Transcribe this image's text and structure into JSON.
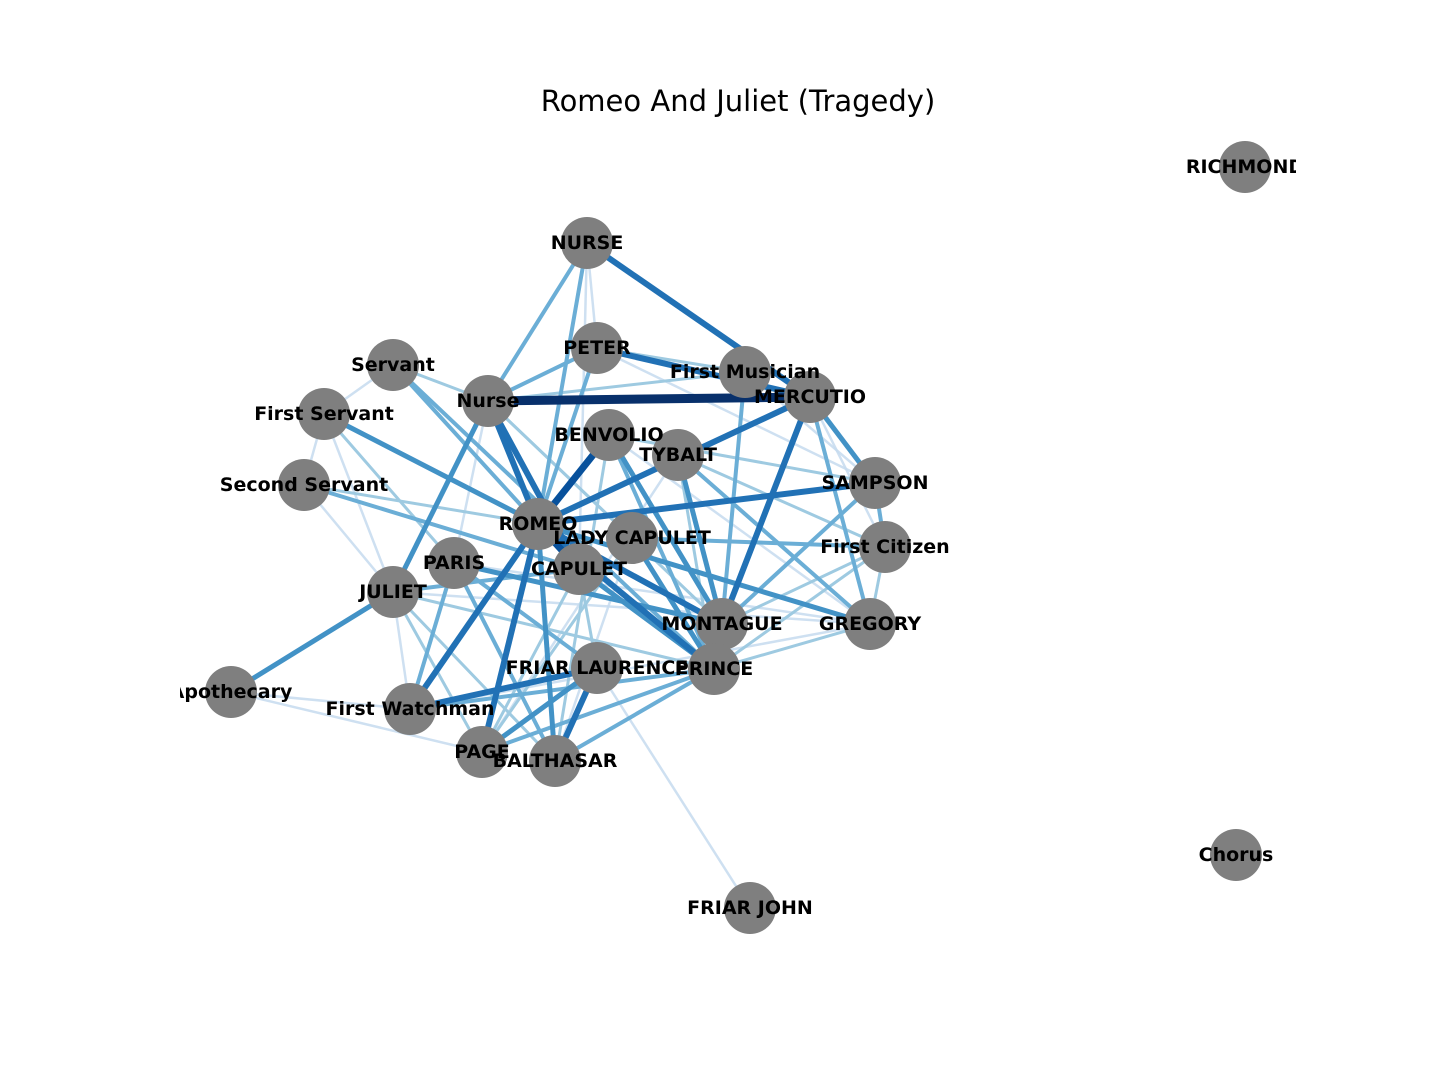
{
  "title": "Romeo And Juliet (Tragedy)",
  "colors": {
    "node": "#7f7f7f",
    "label": "#000000",
    "edge_scale": [
      "#c6dbef",
      "#9ecae1",
      "#6baed6",
      "#4292c6",
      "#2171b5",
      "#08519c",
      "#08306b"
    ]
  },
  "nodes": [
    {
      "id": "RICHMOND",
      "label": "RICHMOND"
    },
    {
      "id": "NURSE",
      "label": "NURSE"
    },
    {
      "id": "PETER",
      "label": "PETER"
    },
    {
      "id": "Servant",
      "label": "Servant"
    },
    {
      "id": "First Musician",
      "label": "First Musician"
    },
    {
      "id": "Nurse",
      "label": "Nurse"
    },
    {
      "id": "MERCUTIO",
      "label": "MERCUTIO"
    },
    {
      "id": "First Servant",
      "label": "First Servant"
    },
    {
      "id": "BENVOLIO",
      "label": "BENVOLIO"
    },
    {
      "id": "TYBALT",
      "label": "TYBALT"
    },
    {
      "id": "Second Servant",
      "label": "Second Servant"
    },
    {
      "id": "SAMPSON",
      "label": "SAMPSON"
    },
    {
      "id": "ROMEO",
      "label": "ROMEO"
    },
    {
      "id": "LADY CAPULET",
      "label": "LADY CAPULET"
    },
    {
      "id": "First Citizen",
      "label": "First Citizen"
    },
    {
      "id": "PARIS",
      "label": "PARIS"
    },
    {
      "id": "CAPULET",
      "label": "CAPULET"
    },
    {
      "id": "JULIET",
      "label": "JULIET"
    },
    {
      "id": "MONTAGUE",
      "label": "MONTAGUE"
    },
    {
      "id": "GREGORY",
      "label": "GREGORY"
    },
    {
      "id": "FRIAR LAURENCE",
      "label": "FRIAR LAURENCE"
    },
    {
      "id": "PRINCE",
      "label": "PRINCE"
    },
    {
      "id": "Apothecary",
      "label": "Apothecary"
    },
    {
      "id": "First Watchman",
      "label": "First Watchman"
    },
    {
      "id": "PAGE",
      "label": "PAGE"
    },
    {
      "id": "BALTHASAR",
      "label": "BALTHASAR"
    },
    {
      "id": "FRIAR JOHN",
      "label": "FRIAR JOHN"
    },
    {
      "id": "Chorus",
      "label": "Chorus"
    }
  ],
  "edges": [
    {
      "source": "Nurse",
      "target": "MERCUTIO",
      "weight": 7
    },
    {
      "source": "ROMEO",
      "target": "BENVOLIO",
      "weight": 6
    },
    {
      "source": "ROMEO",
      "target": "CAPULET",
      "weight": 6
    },
    {
      "source": "NURSE",
      "target": "MERCUTIO",
      "weight": 5
    },
    {
      "source": "PETER",
      "target": "MERCUTIO",
      "weight": 5
    },
    {
      "source": "ROMEO",
      "target": "SAMPSON",
      "weight": 5
    },
    {
      "source": "ROMEO",
      "target": "First Watchman",
      "weight": 5
    },
    {
      "source": "ROMEO",
      "target": "PAGE",
      "weight": 5
    },
    {
      "source": "Nurse",
      "target": "ROMEO",
      "weight": 5
    },
    {
      "source": "ROMEO",
      "target": "MERCUTIO",
      "weight": 5
    },
    {
      "source": "MERCUTIO",
      "target": "MONTAGUE",
      "weight": 5
    },
    {
      "source": "ROMEO",
      "target": "MONTAGUE",
      "weight": 5
    },
    {
      "source": "ROMEO",
      "target": "PRINCE",
      "weight": 5
    },
    {
      "source": "Nurse",
      "target": "CAPULET",
      "weight": 5
    },
    {
      "source": "FRIAR LAURENCE",
      "target": "BALTHASAR",
      "weight": 5
    },
    {
      "source": "FRIAR LAURENCE",
      "target": "First Watchman",
      "weight": 5
    },
    {
      "source": "BENVOLIO",
      "target": "MONTAGUE",
      "weight": 4
    },
    {
      "source": "JULIET",
      "target": "Apothecary",
      "weight": 4
    },
    {
      "source": "JULIET",
      "target": "Nurse",
      "weight": 4
    },
    {
      "source": "TYBALT",
      "target": "MONTAGUE",
      "weight": 4
    },
    {
      "source": "MERCUTIO",
      "target": "SAMPSON",
      "weight": 4
    },
    {
      "source": "ROMEO",
      "target": "GREGORY",
      "weight": 4
    },
    {
      "source": "PARIS",
      "target": "MONTAGUE",
      "weight": 4
    },
    {
      "source": "First Servant",
      "target": "ROMEO",
      "weight": 4
    },
    {
      "source": "PAGE",
      "target": "FRIAR LAURENCE",
      "weight": 4
    },
    {
      "source": "CAPULET",
      "target": "PRINCE",
      "weight": 4
    },
    {
      "source": "LADY CAPULET",
      "target": "PRINCE",
      "weight": 4
    },
    {
      "source": "ROMEO",
      "target": "BALTHASAR",
      "weight": 4
    },
    {
      "source": "LADY CAPULET",
      "target": "First Citizen",
      "weight": 3
    },
    {
      "source": "NURSE",
      "target": "Nurse",
      "weight": 3
    },
    {
      "source": "PETER",
      "target": "Nurse",
      "weight": 3
    },
    {
      "source": "Servant",
      "target": "ROMEO",
      "weight": 3
    },
    {
      "source": "Servant",
      "target": "PRINCE",
      "weight": 3
    },
    {
      "source": "Second Servant",
      "target": "CAPULET",
      "weight": 3
    },
    {
      "source": "BENVOLIO",
      "target": "PRINCE",
      "weight": 3
    },
    {
      "source": "TYBALT",
      "target": "GREGORY",
      "weight": 3
    },
    {
      "source": "SAMPSON",
      "target": "First Citizen",
      "weight": 3
    },
    {
      "source": "SAMPSON",
      "target": "MONTAGUE",
      "weight": 3
    },
    {
      "source": "PARIS",
      "target": "FRIAR LAURENCE",
      "weight": 3
    },
    {
      "source": "JULIET",
      "target": "CAPULET",
      "weight": 3
    },
    {
      "source": "PETER",
      "target": "ROMEO",
      "weight": 3
    },
    {
      "source": "NURSE",
      "target": "ROMEO",
      "weight": 3
    },
    {
      "source": "First Musician",
      "target": "MONTAGUE",
      "weight": 3
    },
    {
      "source": "MERCUTIO",
      "target": "GREGORY",
      "weight": 3
    },
    {
      "source": "BALTHASAR",
      "target": "PRINCE",
      "weight": 3
    },
    {
      "source": "PAGE",
      "target": "PRINCE",
      "weight": 3
    },
    {
      "source": "First Watchman",
      "target": "PRINCE",
      "weight": 3
    },
    {
      "source": "PARIS",
      "target": "First Watchman",
      "weight": 3
    },
    {
      "source": "PARIS",
      "target": "BALTHASAR",
      "weight": 3
    },
    {
      "source": "PETER",
      "target": "First Musician",
      "weight": 2
    },
    {
      "source": "First Musician",
      "target": "Nurse",
      "weight": 2
    },
    {
      "source": "Servant",
      "target": "Nurse",
      "weight": 2
    },
    {
      "source": "First Servant",
      "target": "PARIS",
      "weight": 2
    },
    {
      "source": "Second Servant",
      "target": "ROMEO",
      "weight": 2
    },
    {
      "source": "BENVOLIO",
      "target": "SAMPSON",
      "weight": 2
    },
    {
      "source": "TYBALT",
      "target": "First Citizen",
      "weight": 2
    },
    {
      "source": "TYBALT",
      "target": "PRINCE",
      "weight": 2
    },
    {
      "source": "GREGORY",
      "target": "PRINCE",
      "weight": 2
    },
    {
      "source": "GREGORY",
      "target": "First Citizen",
      "weight": 2
    },
    {
      "source": "MONTAGUE",
      "target": "First Citizen",
      "weight": 2
    },
    {
      "source": "JULIET",
      "target": "PRINCE",
      "weight": 2
    },
    {
      "source": "JULIET",
      "target": "BALTHASAR",
      "weight": 2
    },
    {
      "source": "JULIET",
      "target": "PAGE",
      "weight": 2
    },
    {
      "source": "CAPULET",
      "target": "PAGE",
      "weight": 2
    },
    {
      "source": "CAPULET",
      "target": "FRIAR LAURENCE",
      "weight": 2
    },
    {
      "source": "LADY CAPULET",
      "target": "PAGE",
      "weight": 2
    },
    {
      "source": "BENVOLIO",
      "target": "BALTHASAR",
      "weight": 2
    },
    {
      "source": "Nurse",
      "target": "LADY CAPULET",
      "weight": 2
    },
    {
      "source": "Nurse",
      "target": "MONTAGUE",
      "weight": 2
    },
    {
      "source": "PRINCE",
      "target": "First Citizen",
      "weight": 2
    },
    {
      "source": "NURSE",
      "target": "PETER",
      "weight": 1
    },
    {
      "source": "NURSE",
      "target": "CAPULET",
      "weight": 1
    },
    {
      "source": "Servant",
      "target": "First Servant",
      "weight": 1
    },
    {
      "source": "Servant",
      "target": "CAPULET",
      "weight": 1
    },
    {
      "source": "First Servant",
      "target": "JULIET",
      "weight": 1
    },
    {
      "source": "First Servant",
      "target": "Second Servant",
      "weight": 1
    },
    {
      "source": "Second Servant",
      "target": "JULIET",
      "weight": 1
    },
    {
      "source": "JULIET",
      "target": "First Watchman",
      "weight": 1
    },
    {
      "source": "JULIET",
      "target": "GREGORY",
      "weight": 1
    },
    {
      "source": "Apothecary",
      "target": "First Watchman",
      "weight": 1
    },
    {
      "source": "Apothecary",
      "target": "PAGE",
      "weight": 1
    },
    {
      "source": "FRIAR LAURENCE",
      "target": "FRIAR JOHN",
      "weight": 1
    },
    {
      "source": "PETER",
      "target": "SAMPSON",
      "weight": 1
    },
    {
      "source": "First Musician",
      "target": "SAMPSON",
      "weight": 1
    },
    {
      "source": "BENVOLIO",
      "target": "GREGORY",
      "weight": 1
    },
    {
      "source": "PARIS",
      "target": "GREGORY",
      "weight": 1
    },
    {
      "source": "First Watchman",
      "target": "GREGORY",
      "weight": 1
    },
    {
      "source": "TYBALT",
      "target": "PAGE",
      "weight": 1
    },
    {
      "source": "MERCUTIO",
      "target": "First Citizen",
      "weight": 1
    },
    {
      "source": "LADY CAPULET",
      "target": "BALTHASAR",
      "weight": 1
    },
    {
      "source": "PARIS",
      "target": "Nurse",
      "weight": 1
    }
  ]
}
